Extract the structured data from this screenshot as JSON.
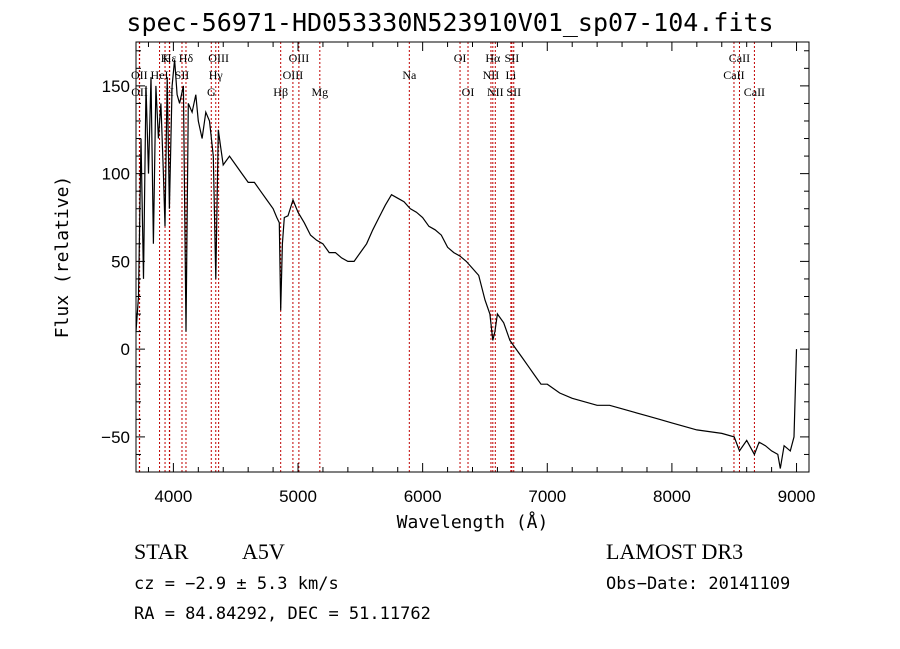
{
  "chart_data": {
    "type": "line",
    "title": "spec-56971-HD053330N523910V01_sp07-104.fits",
    "xlabel": "Wavelength (Å)",
    "ylabel": "Flux (relative)",
    "xlim": [
      3700,
      9100
    ],
    "ylim": [
      -70,
      175
    ],
    "xticks": [
      4000,
      5000,
      6000,
      7000,
      8000,
      9000
    ],
    "yticks": [
      -50,
      0,
      50,
      100,
      150
    ],
    "grid": false,
    "series": [
      {
        "name": "spectrum",
        "x": [
          3700,
          3720,
          3740,
          3760,
          3780,
          3800,
          3820,
          3840,
          3860,
          3880,
          3900,
          3920,
          3933,
          3950,
          3968,
          3990,
          4010,
          4030,
          4050,
          4080,
          4101,
          4120,
          4150,
          4180,
          4200,
          4230,
          4260,
          4290,
          4320,
          4340,
          4360,
          4380,
          4400,
          4450,
          4500,
          4550,
          4600,
          4650,
          4700,
          4750,
          4800,
          4830,
          4850,
          4861,
          4875,
          4890,
          4920,
          4960,
          5000,
          5050,
          5100,
          5150,
          5200,
          5250,
          5300,
          5350,
          5400,
          5450,
          5500,
          5550,
          5600,
          5650,
          5700,
          5750,
          5800,
          5850,
          5900,
          5950,
          6000,
          6050,
          6100,
          6150,
          6200,
          6250,
          6300,
          6350,
          6400,
          6450,
          6500,
          6540,
          6563,
          6580,
          6600,
          6650,
          6700,
          6750,
          6800,
          6850,
          6900,
          6950,
          7000,
          7100,
          7200,
          7300,
          7400,
          7500,
          7600,
          7700,
          7800,
          7900,
          8000,
          8100,
          8200,
          8300,
          8400,
          8500,
          8542,
          8600,
          8662,
          8700,
          8750,
          8800,
          8850,
          8870,
          8900,
          8950,
          8980,
          9000
        ],
        "y": [
          10,
          30,
          120,
          40,
          150,
          100,
          155,
          60,
          150,
          120,
          140,
          100,
          70,
          155,
          80,
          150,
          165,
          145,
          140,
          150,
          10,
          140,
          135,
          145,
          130,
          120,
          135,
          130,
          110,
          40,
          125,
          115,
          105,
          110,
          105,
          100,
          95,
          95,
          90,
          85,
          80,
          75,
          72,
          22,
          60,
          75,
          76,
          85,
          78,
          72,
          65,
          62,
          60,
          55,
          55,
          52,
          50,
          50,
          55,
          60,
          68,
          75,
          82,
          88,
          86,
          84,
          80,
          78,
          75,
          70,
          68,
          65,
          58,
          55,
          53,
          50,
          46,
          42,
          28,
          20,
          5,
          10,
          20,
          15,
          5,
          0,
          -5,
          -10,
          -15,
          -20,
          -20,
          -25,
          -28,
          -30,
          -32,
          -32,
          -34,
          -36,
          -38,
          -40,
          -42,
          -44,
          -46,
          -47,
          -48,
          -50,
          -58,
          -52,
          -60,
          -53,
          -55,
          -58,
          -60,
          -68,
          -55,
          -58,
          -50,
          0
        ]
      }
    ],
    "lines": [
      {
        "label": "Hε",
        "x": 3970,
        "row": 0
      },
      {
        "label": "K",
        "x": 3933,
        "row": 0
      },
      {
        "label": "Hδ",
        "x": 4101,
        "row": 0
      },
      {
        "label": "OIII",
        "x": 4363,
        "row": 0
      },
      {
        "label": "OIII",
        "x": 5007,
        "row": 0
      },
      {
        "label": "OI",
        "x": 6300,
        "row": 0
      },
      {
        "label": "Hα",
        "x": 6563,
        "row": 0
      },
      {
        "label": "SII",
        "x": 6716,
        "row": 0
      },
      {
        "label": "CaII",
        "x": 8542,
        "row": 0
      },
      {
        "label": "OII",
        "x": 3727,
        "row": 1
      },
      {
        "label": "HeI",
        "x": 3889,
        "row": 1
      },
      {
        "label": "SII",
        "x": 4069,
        "row": 1
      },
      {
        "label": "Hγ",
        "x": 4340,
        "row": 1
      },
      {
        "label": "OIII",
        "x": 4959,
        "row": 1
      },
      {
        "label": "Na",
        "x": 5893,
        "row": 1
      },
      {
        "label": "NII",
        "x": 6548,
        "row": 1
      },
      {
        "label": "Li",
        "x": 6708,
        "row": 1
      },
      {
        "label": "CaII",
        "x": 8498,
        "row": 1
      },
      {
        "label": "OII",
        "x": 3729,
        "row": 2
      },
      {
        "label": "H",
        "x": 3968,
        "row": 2
      },
      {
        "label": "G",
        "x": 4304,
        "row": 2
      },
      {
        "label": "Hβ",
        "x": 4861,
        "row": 2
      },
      {
        "label": "Mg",
        "x": 5175,
        "row": 2
      },
      {
        "label": "OI",
        "x": 6364,
        "row": 2
      },
      {
        "label": "NII",
        "x": 6583,
        "row": 2
      },
      {
        "label": "SII",
        "x": 6731,
        "row": 2
      },
      {
        "label": "CaII",
        "x": 8662,
        "row": 2
      }
    ]
  },
  "info": {
    "object_class": "STAR",
    "subclass": "A5V",
    "survey": "LAMOST DR3",
    "cz": "cz = −2.9 ± 5.3 km/s",
    "obs_date": "Obs−Date: 20141109",
    "coords": "RA =  84.84292, DEC =  51.11762"
  }
}
